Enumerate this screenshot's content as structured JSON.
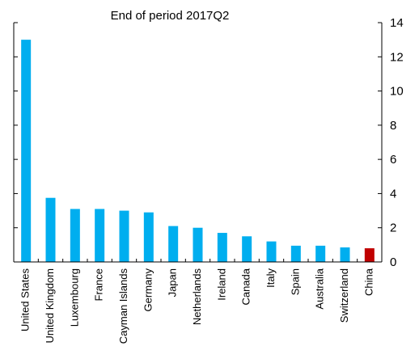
{
  "chart_data": {
    "type": "bar",
    "title": "End of period 2017Q2",
    "categories": [
      "United States",
      "United Kingdom",
      "Luxembourg",
      "France",
      "Cayman Islands",
      "Germany",
      "Japan",
      "Netherlands",
      "Ireland",
      "Canada",
      "Italy",
      "Spain",
      "Australia",
      "Switzerland",
      "China"
    ],
    "values": [
      13.0,
      3.75,
      3.1,
      3.1,
      3.0,
      2.9,
      2.1,
      2.0,
      1.7,
      1.5,
      1.2,
      0.95,
      0.95,
      0.85,
      0.8
    ],
    "ylim": [
      0,
      14
    ],
    "yticks": [
      0,
      2,
      4,
      6,
      8,
      10,
      12,
      14
    ],
    "y_axis_side": "right",
    "grid": false,
    "colors": {
      "default_bar": "#00aeef",
      "highlight_bar": "#c00000",
      "highlight_category": "China"
    }
  }
}
